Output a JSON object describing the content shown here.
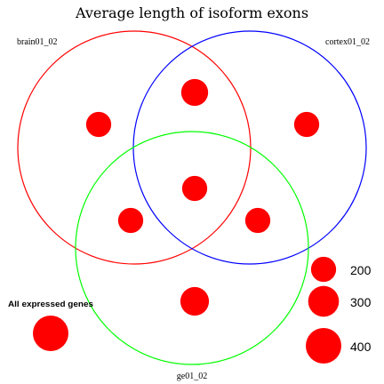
{
  "title": "Average length of isoform exons",
  "sets": [
    {
      "id": "brain",
      "label": "brain01_02",
      "color": "#ff0000"
    },
    {
      "id": "cortex",
      "label": "cortex01_02",
      "color": "#0000ff"
    },
    {
      "id": "ge",
      "label": "ge01_02",
      "color": "#00ff00"
    }
  ],
  "marker_color": "#ff0000",
  "regions": [
    {
      "name": "brain-only",
      "sets": [
        "brain"
      ],
      "value": 200
    },
    {
      "name": "cortex-only",
      "sets": [
        "cortex"
      ],
      "value": 200
    },
    {
      "name": "brain-cortex",
      "sets": [
        "brain",
        "cortex"
      ],
      "value": 230
    },
    {
      "name": "brain-cortex-ge",
      "sets": [
        "brain",
        "cortex",
        "ge"
      ],
      "value": 200
    },
    {
      "name": "brain-ge",
      "sets": [
        "brain",
        "ge"
      ],
      "value": 200
    },
    {
      "name": "cortex-ge",
      "sets": [
        "cortex",
        "ge"
      ],
      "value": 200
    },
    {
      "name": "ge-only",
      "sets": [
        "ge"
      ],
      "value": 260
    }
  ],
  "all_expressed": {
    "label": "All expressed genes",
    "value": 400
  },
  "legend": {
    "values": [
      200,
      300,
      400
    ],
    "labels": [
      "200",
      "300",
      "400"
    ]
  }
}
